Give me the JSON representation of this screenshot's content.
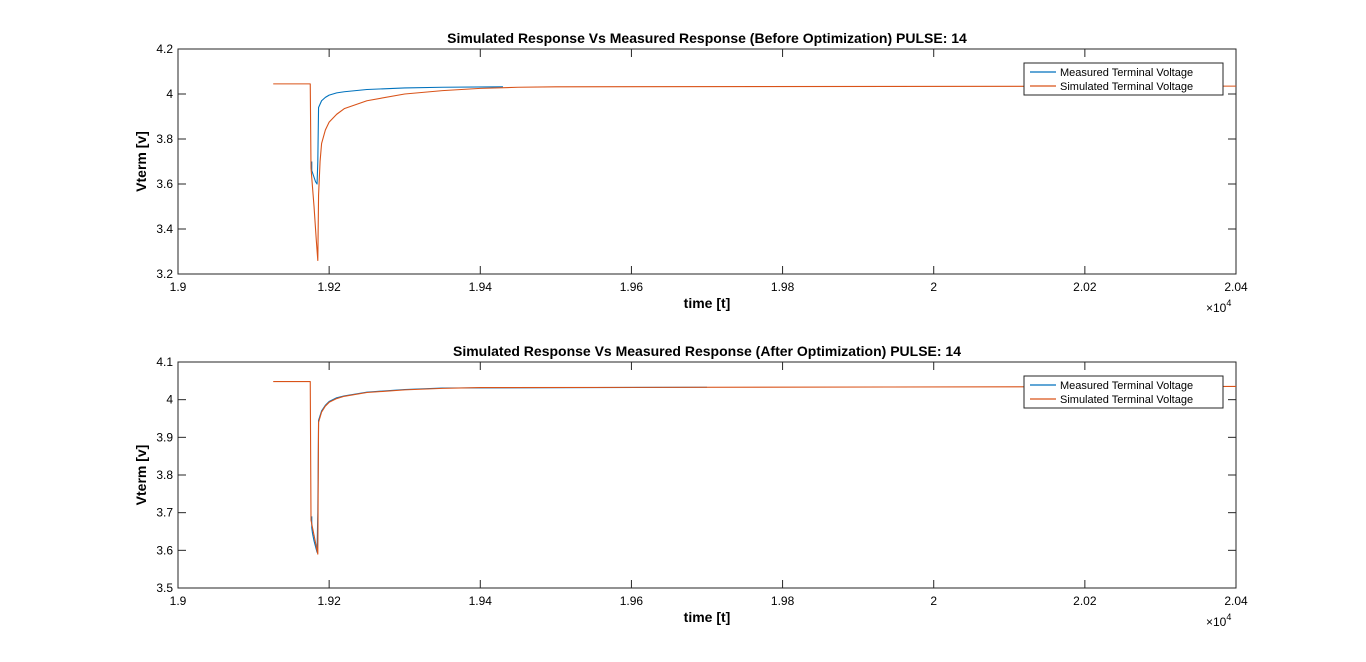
{
  "chart_data": [
    {
      "type": "line",
      "title": "Simulated Response Vs Measured Response (Before Optimization) PULSE: 14",
      "xlabel": "time [t]",
      "ylabel": "Vterm [v]",
      "x_scale_factor_label": "×10",
      "x_scale_exponent": "4",
      "xlim": [
        1.9,
        2.04
      ],
      "ylim": [
        3.2,
        4.2
      ],
      "x_ticks": [
        "1.9",
        "1.92",
        "1.94",
        "1.96",
        "1.98",
        "2",
        "2.02",
        "2.04"
      ],
      "y_ticks": [
        "3.2",
        "3.4",
        "3.6",
        "3.8",
        "4",
        "4.2"
      ],
      "x_tick_values": [
        1.9,
        1.92,
        1.94,
        1.96,
        1.98,
        2.0,
        2.02,
        2.04
      ],
      "y_tick_values": [
        3.2,
        3.4,
        3.6,
        3.8,
        4.0,
        4.2
      ],
      "grid": false,
      "legend_position": "top-right",
      "series": [
        {
          "name": "Measured Terminal Voltage",
          "color": "#0072BD",
          "x": [
            1.9177,
            1.9177,
            1.9178,
            1.918,
            1.9182,
            1.9184,
            1.9185,
            1.9186,
            1.919,
            1.9195,
            1.92,
            1.921,
            1.922,
            1.925,
            1.93,
            1.935,
            1.943
          ],
          "y": [
            3.7,
            3.66,
            3.65,
            3.63,
            3.61,
            3.6,
            3.7,
            3.94,
            3.97,
            3.985,
            3.995,
            4.005,
            4.01,
            4.02,
            4.027,
            4.03,
            4.032
          ]
        },
        {
          "name": "Simulated Terminal Voltage",
          "color": "#D95319",
          "x": [
            1.9126,
            1.9175,
            1.9176,
            1.918,
            1.9183,
            1.9185,
            1.9186,
            1.9188,
            1.919,
            1.9195,
            1.92,
            1.921,
            1.922,
            1.925,
            1.93,
            1.935,
            1.94,
            1.945,
            1.95,
            2.04
          ],
          "y": [
            4.045,
            4.045,
            3.67,
            3.5,
            3.35,
            3.26,
            3.55,
            3.7,
            3.78,
            3.84,
            3.875,
            3.91,
            3.935,
            3.97,
            4.0,
            4.015,
            4.025,
            4.03,
            4.032,
            4.035
          ]
        }
      ]
    },
    {
      "type": "line",
      "title": "Simulated Response Vs Measured Response (After Optimization) PULSE: 14",
      "xlabel": "time [t]",
      "ylabel": "Vterm [v]",
      "x_scale_factor_label": "×10",
      "x_scale_exponent": "4",
      "xlim": [
        1.9,
        2.04
      ],
      "ylim": [
        3.5,
        4.1
      ],
      "x_ticks": [
        "1.9",
        "1.92",
        "1.94",
        "1.96",
        "1.98",
        "2",
        "2.02",
        "2.04"
      ],
      "y_ticks": [
        "3.5",
        "3.6",
        "3.7",
        "3.8",
        "3.9",
        "4",
        "4.1"
      ],
      "x_tick_values": [
        1.9,
        1.92,
        1.94,
        1.96,
        1.98,
        2.0,
        2.02,
        2.04
      ],
      "y_tick_values": [
        3.5,
        3.6,
        3.7,
        3.8,
        3.9,
        4.0,
        4.1
      ],
      "grid": false,
      "legend_position": "top-right",
      "series": [
        {
          "name": "Measured Terminal Voltage",
          "color": "#0072BD",
          "x": [
            1.9177,
            1.9177,
            1.9178,
            1.918,
            1.9182,
            1.9184,
            1.9185,
            1.9186,
            1.919,
            1.9195,
            1.92,
            1.921,
            1.922,
            1.925,
            1.93,
            1.935,
            1.97
          ],
          "y": [
            3.69,
            3.66,
            3.645,
            3.625,
            3.61,
            3.595,
            3.7,
            3.945,
            3.97,
            3.985,
            3.995,
            4.005,
            4.01,
            4.02,
            4.027,
            4.031,
            4.033
          ]
        },
        {
          "name": "Simulated Terminal Voltage",
          "color": "#D95319",
          "x": [
            1.9126,
            1.9175,
            1.9176,
            1.9178,
            1.918,
            1.9182,
            1.9184,
            1.9185,
            1.9186,
            1.919,
            1.9195,
            1.92,
            1.921,
            1.922,
            1.925,
            1.93,
            1.935,
            1.94,
            2.04
          ],
          "y": [
            4.048,
            4.048,
            3.68,
            3.66,
            3.64,
            3.62,
            3.6,
            3.59,
            3.94,
            3.967,
            3.983,
            3.993,
            4.003,
            4.009,
            4.019,
            4.026,
            4.03,
            4.032,
            4.035
          ]
        }
      ]
    }
  ]
}
